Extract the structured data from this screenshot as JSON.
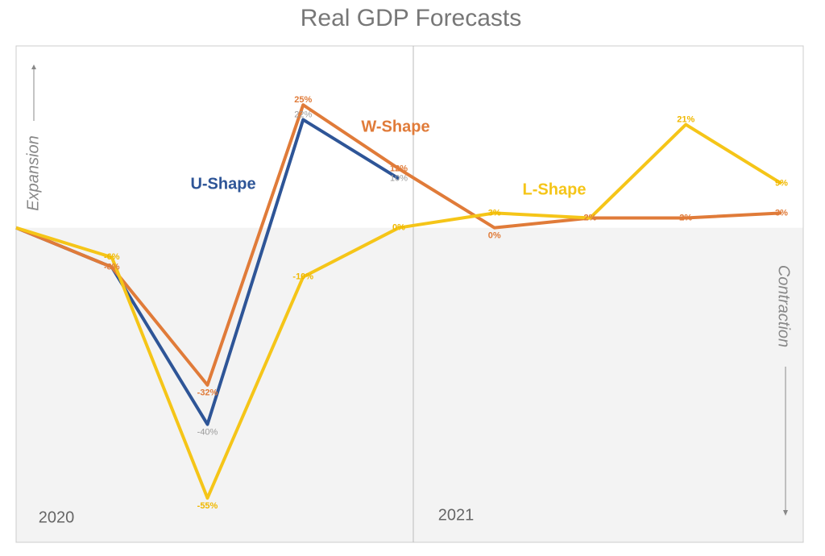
{
  "chart_data": {
    "type": "line",
    "title": "Real GDP Forecasts",
    "categories": [
      null,
      null,
      null,
      null,
      null,
      null,
      null,
      null,
      null
    ],
    "period_labels": [
      "2020",
      "2021"
    ],
    "y_axis_labels": [
      "Expansion",
      "Contraction"
    ],
    "ylim": [
      -64,
      37
    ],
    "series": [
      {
        "name": "U-Shape",
        "color": "#2e5597",
        "label_color": "#9a9a9a",
        "values": [
          0,
          -8,
          -40,
          22,
          10,
          null,
          null,
          null,
          null
        ],
        "value_labels": [
          null,
          null,
          "-40%",
          "22%",
          "10%",
          null,
          null,
          null,
          null
        ]
      },
      {
        "name": "W-Shape",
        "color": "#e07b39",
        "label_color": "#e07b39",
        "values": [
          0,
          -8,
          -32,
          25,
          12,
          0,
          2,
          2,
          3
        ],
        "value_labels": [
          null,
          "-8%",
          "-32%",
          "25%",
          "12%",
          "0%",
          "2%",
          "2%",
          "3%"
        ]
      },
      {
        "name": "L-Shape",
        "color": "#f5c518",
        "label_color": "#f0b800",
        "values": [
          0,
          -6,
          -55,
          -10,
          0,
          3,
          2,
          21,
          9
        ],
        "value_labels": [
          null,
          "-6%",
          "-55%",
          "-10%",
          "0%",
          "3%",
          null,
          "21%",
          "9%"
        ]
      }
    ]
  }
}
